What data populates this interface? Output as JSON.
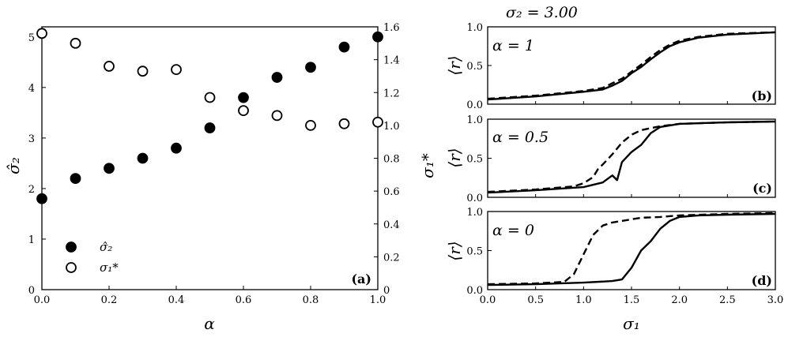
{
  "chart_data": [
    {
      "id": "a",
      "type": "scatter",
      "panel_label": "(a)",
      "xlabel": "α",
      "ylabel_left": "σ̂₂",
      "ylabel_right": "σ₁*",
      "xlim": [
        0,
        1
      ],
      "ylim_left": [
        0,
        5.2
      ],
      "ylim_right": [
        0,
        1.6
      ],
      "x_ticks": [
        "0.0",
        "0.2",
        "0.4",
        "0.6",
        "0.8",
        "1.0"
      ],
      "y_ticks_left": [
        "0",
        "1",
        "2",
        "3",
        "4",
        "5"
      ],
      "y_ticks_right": [
        "0",
        "0.2",
        "0.4",
        "0.6",
        "0.8",
        "1.0",
        "1.2",
        "1.4",
        "1.6"
      ],
      "legend_position": "bottom-left",
      "series": [
        {
          "name": "σ̂₂",
          "marker": "filled-circle",
          "axis": "left",
          "x": [
            0,
            0.1,
            0.2,
            0.3,
            0.4,
            0.5,
            0.6,
            0.7,
            0.8,
            0.9,
            1.0
          ],
          "y": [
            1.8,
            2.2,
            2.4,
            2.6,
            2.8,
            3.2,
            3.8,
            4.2,
            4.4,
            4.8,
            5.0
          ]
        },
        {
          "name": "σ₁*",
          "marker": "open-circle",
          "axis": "right",
          "x": [
            0,
            0.1,
            0.2,
            0.3,
            0.4,
            0.5,
            0.6,
            0.7,
            0.8,
            0.9,
            1.0
          ],
          "y": [
            1.56,
            1.5,
            1.36,
            1.33,
            1.34,
            1.17,
            1.09,
            1.06,
            1.0,
            1.01,
            1.02
          ]
        }
      ]
    },
    {
      "id": "b",
      "type": "line",
      "title": "σ₂ = 3.00",
      "panel_label": "(b)",
      "annotation": "α = 1",
      "ylabel": "⟨r⟩",
      "xlim": [
        0,
        3
      ],
      "ylim": [
        0,
        1
      ],
      "y_ticks": [
        "0.0",
        "0.5",
        "1.0"
      ],
      "series": [
        {
          "style": "solid",
          "x": [
            0,
            0.5,
            1.0,
            1.2,
            1.3,
            1.4,
            1.5,
            1.6,
            1.7,
            1.8,
            1.9,
            2.0,
            2.2,
            2.5,
            3.0
          ],
          "y": [
            0.06,
            0.1,
            0.16,
            0.19,
            0.24,
            0.3,
            0.4,
            0.48,
            0.58,
            0.67,
            0.75,
            0.8,
            0.86,
            0.9,
            0.93
          ]
        },
        {
          "style": "dashed",
          "x": [
            0,
            0.5,
            1.0,
            1.2,
            1.3,
            1.4,
            1.5,
            1.6,
            1.7,
            1.8,
            1.9,
            2.0,
            2.2,
            2.5,
            3.0
          ],
          "y": [
            0.07,
            0.11,
            0.17,
            0.21,
            0.27,
            0.33,
            0.42,
            0.51,
            0.61,
            0.7,
            0.77,
            0.82,
            0.87,
            0.91,
            0.93
          ]
        }
      ]
    },
    {
      "id": "c",
      "type": "line",
      "panel_label": "(c)",
      "annotation": "α = 0.5",
      "ylabel": "⟨r⟩",
      "xlim": [
        0,
        3
      ],
      "ylim": [
        0,
        1
      ],
      "y_ticks": [
        "0.0",
        "0.5",
        "1.0"
      ],
      "series": [
        {
          "style": "solid",
          "x": [
            0,
            0.5,
            1.0,
            1.2,
            1.3,
            1.35,
            1.4,
            1.5,
            1.6,
            1.7,
            1.8,
            2.0,
            2.5,
            3.0
          ],
          "y": [
            0.06,
            0.09,
            0.13,
            0.19,
            0.28,
            0.22,
            0.45,
            0.58,
            0.67,
            0.82,
            0.9,
            0.94,
            0.96,
            0.97
          ]
        },
        {
          "style": "dashed",
          "x": [
            0,
            0.5,
            0.9,
            1.0,
            1.1,
            1.15,
            1.2,
            1.3,
            1.4,
            1.5,
            1.6,
            1.8,
            2.0,
            2.5,
            3.0
          ],
          "y": [
            0.07,
            0.1,
            0.14,
            0.18,
            0.26,
            0.36,
            0.42,
            0.55,
            0.7,
            0.8,
            0.86,
            0.91,
            0.94,
            0.96,
            0.97
          ]
        }
      ]
    },
    {
      "id": "d",
      "type": "line",
      "panel_label": "(d)",
      "annotation": "α = 0",
      "ylabel": "⟨r⟩",
      "xlabel": "σ₁",
      "xlim": [
        0,
        3
      ],
      "ylim": [
        0,
        1
      ],
      "x_ticks": [
        "0.0",
        "0.5",
        "1.0",
        "1.5",
        "2.0",
        "2.5",
        "3.0"
      ],
      "y_ticks": [
        "0.0",
        "0.5",
        "1.0"
      ],
      "series": [
        {
          "style": "solid",
          "x": [
            0,
            0.5,
            1.0,
            1.3,
            1.4,
            1.5,
            1.6,
            1.7,
            1.8,
            1.9,
            2.0,
            2.2,
            2.5,
            3.0
          ],
          "y": [
            0.06,
            0.07,
            0.09,
            0.11,
            0.13,
            0.28,
            0.5,
            0.62,
            0.78,
            0.88,
            0.93,
            0.95,
            0.96,
            0.97
          ]
        },
        {
          "style": "dashed",
          "x": [
            0,
            0.5,
            0.8,
            0.9,
            1.0,
            1.1,
            1.2,
            1.3,
            1.4,
            1.5,
            1.6,
            1.8,
            2.0,
            2.5,
            3.0
          ],
          "y": [
            0.07,
            0.08,
            0.1,
            0.2,
            0.45,
            0.7,
            0.82,
            0.86,
            0.88,
            0.9,
            0.92,
            0.93,
            0.95,
            0.97,
            0.98
          ]
        }
      ]
    }
  ]
}
